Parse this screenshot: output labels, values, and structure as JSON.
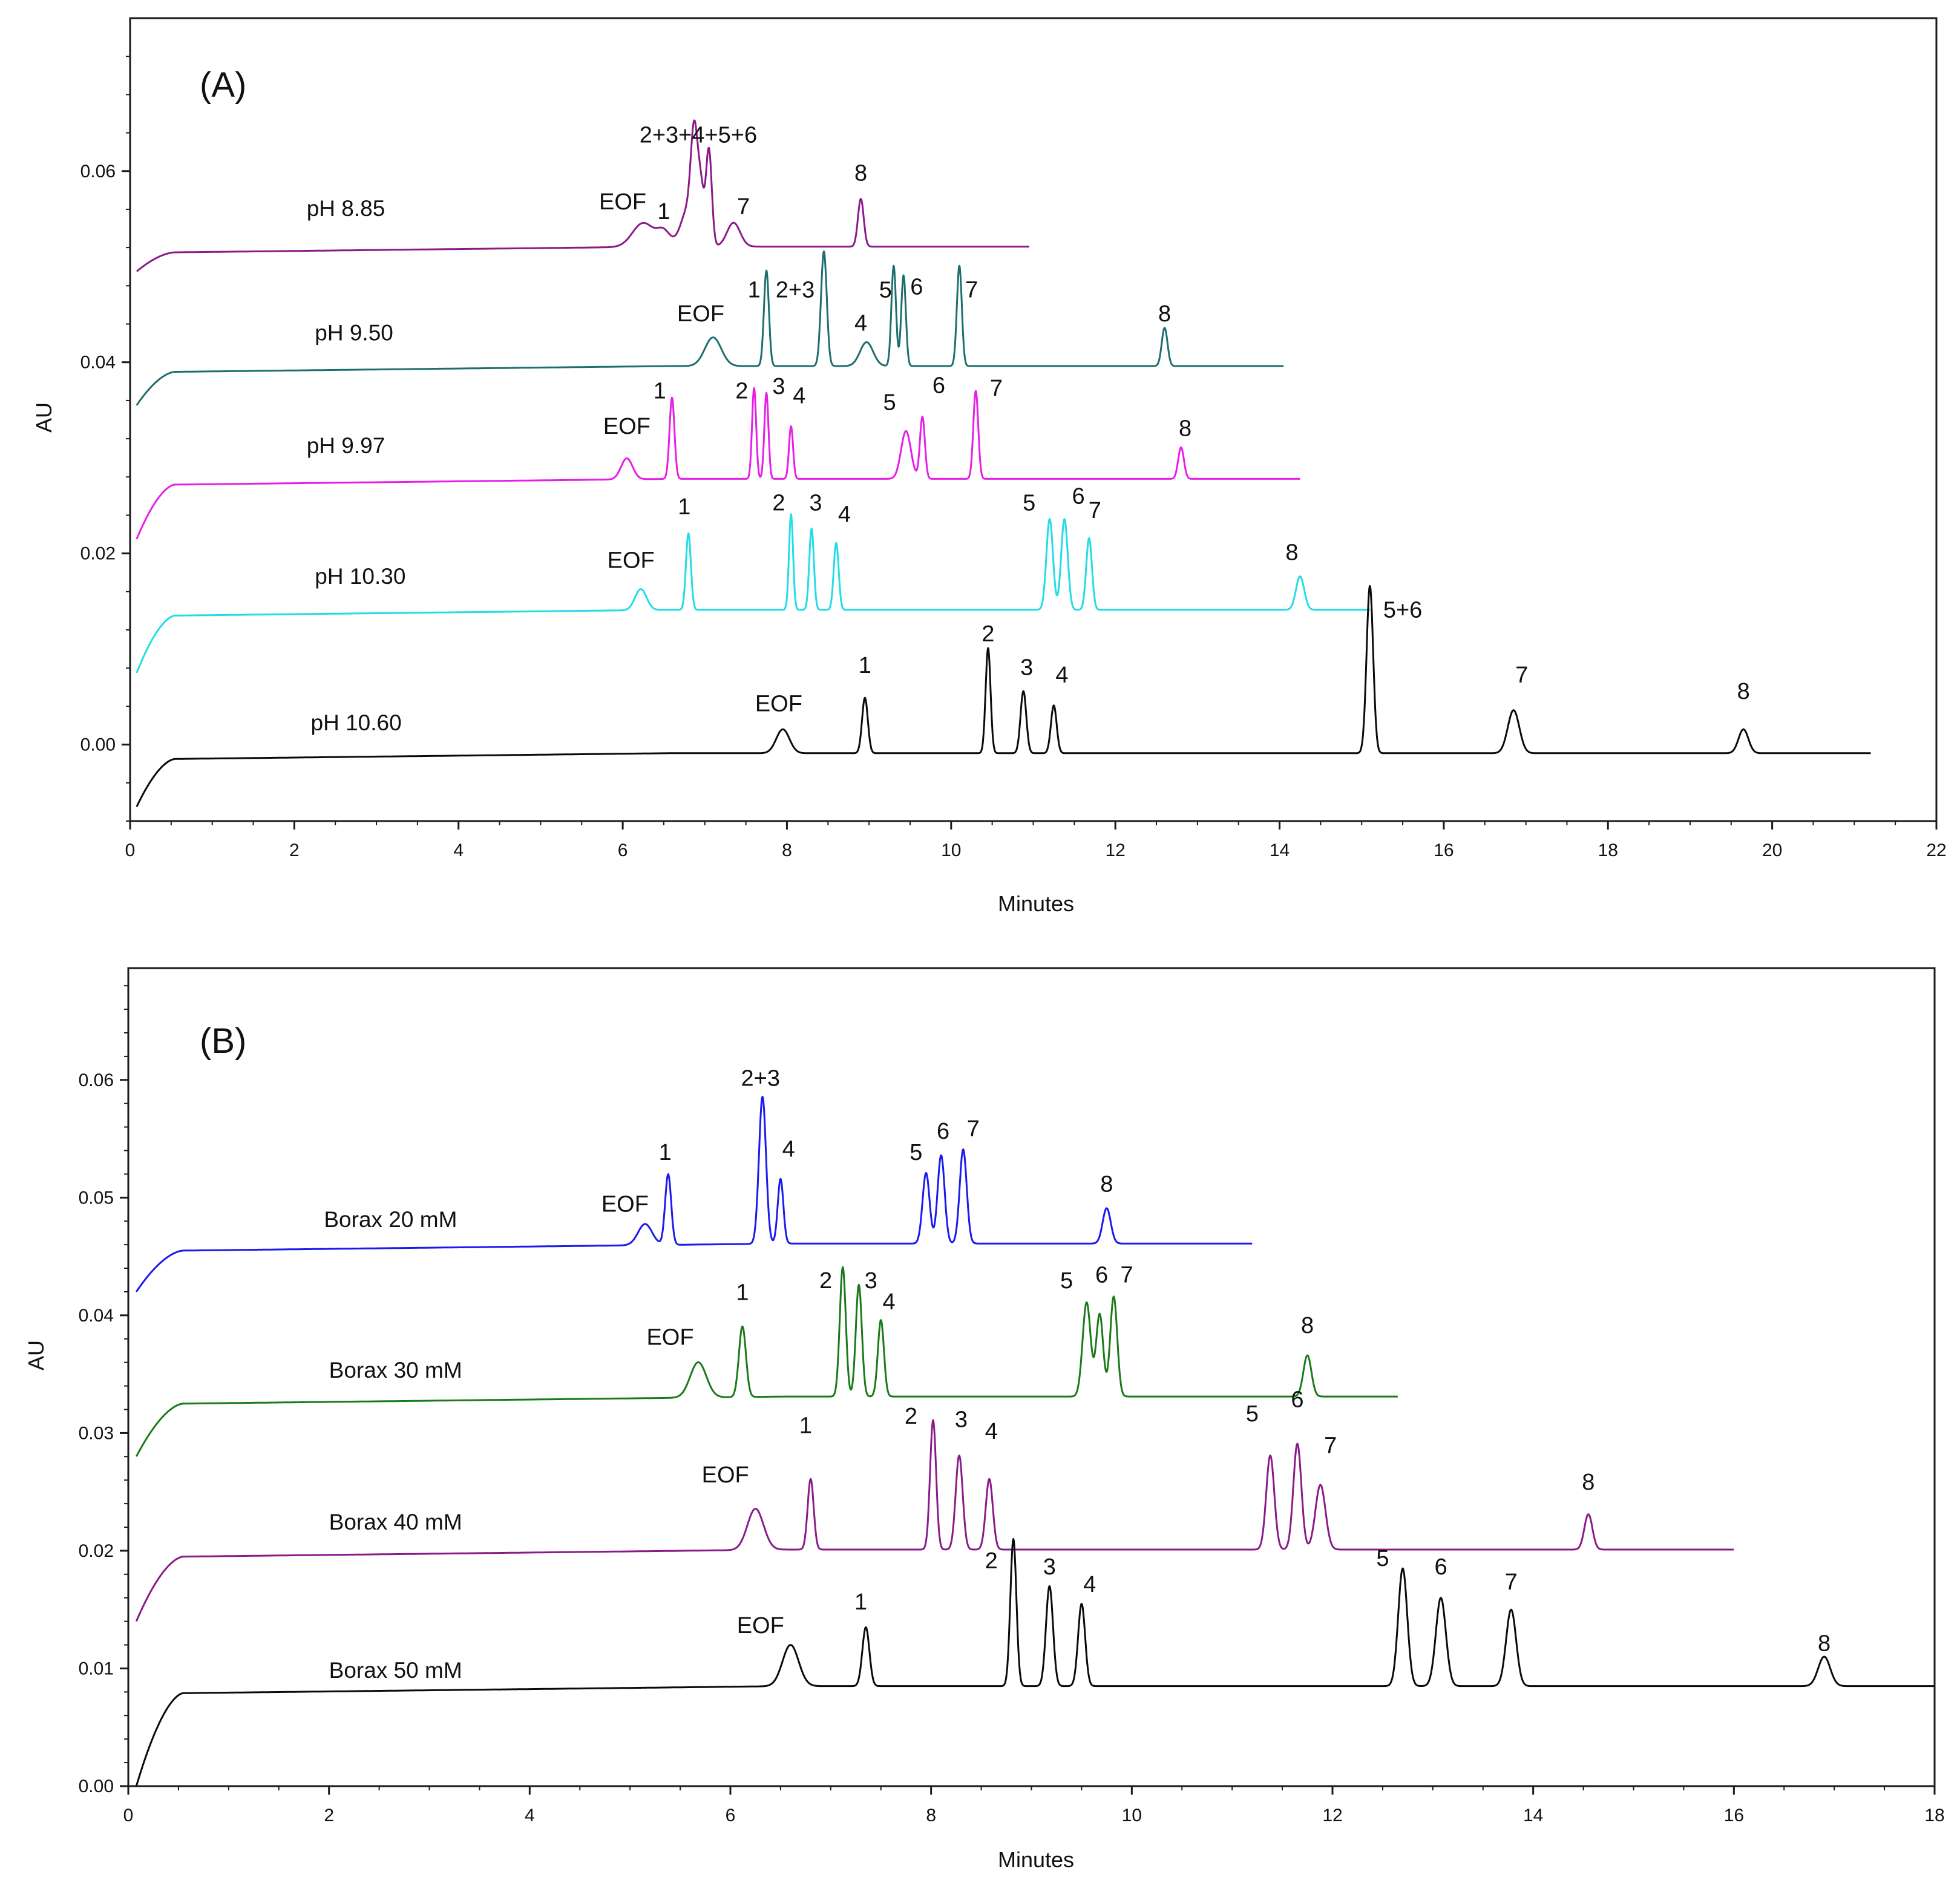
{
  "chart_data": [
    {
      "type": "line",
      "panel": "(A)",
      "xlabel": "Minutes",
      "ylabel": "AU",
      "xlim": [
        0,
        22
      ],
      "ylim": [
        -0.008,
        0.076
      ],
      "xticks": [
        0,
        2,
        4,
        6,
        8,
        10,
        12,
        14,
        16,
        18,
        20,
        22
      ],
      "xtick_labels": [
        "0",
        "2",
        "4",
        "6",
        "8",
        "10",
        "12",
        "14",
        "16",
        "18",
        "20",
        "22"
      ],
      "yticks": [
        0.0,
        0.02,
        0.04,
        0.06
      ],
      "ytick_labels": [
        "0.00",
        "0.02",
        "0.04",
        "0.06"
      ],
      "grid": false,
      "series": [
        {
          "name": "pH 8.85",
          "label": "pH 8.85",
          "color": "#8b1a89",
          "start_y": 0.0495,
          "baseline": 0.0515,
          "end_x": 10.95,
          "label_pos": [
            2.15,
            0.0553
          ],
          "peaks": [
            {
              "t": 6.25,
              "h": 0.0025,
              "w": 0.13,
              "label": "EOF",
              "lx": 6.0,
              "ly": 0.056
            },
            {
              "t": 6.5,
              "h": 0.0015,
              "w": 0.08,
              "label": "1",
              "lx": 6.5,
              "ly": 0.055
            },
            {
              "t": 6.8,
              "h": 0.004,
              "w": 0.09,
              "label": "",
              "lx": 0,
              "ly": 0
            },
            {
              "t": 6.87,
              "h": 0.0095,
              "w": 0.04,
              "label": "",
              "lx": 0,
              "ly": 0
            },
            {
              "t": 6.95,
              "h": 0.0055,
              "w": 0.04,
              "label": "",
              "lx": 0,
              "ly": 0
            },
            {
              "t": 7.05,
              "h": 0.01,
              "w": 0.035,
              "label": "2+3+4+5+6",
              "lx": 6.92,
              "ly": 0.063
            },
            {
              "t": 7.35,
              "h": 0.0025,
              "w": 0.08,
              "label": "7",
              "lx": 7.47,
              "ly": 0.0555
            },
            {
              "t": 8.9,
              "h": 0.005,
              "w": 0.035,
              "label": "8",
              "lx": 8.9,
              "ly": 0.059
            }
          ]
        },
        {
          "name": "pH 9.50",
          "label": "pH 9.50",
          "color": "#1e6e6e",
          "start_y": 0.0355,
          "baseline": 0.039,
          "end_x": 14.05,
          "label_pos": [
            2.25,
            0.0423
          ],
          "peaks": [
            {
              "t": 7.1,
              "h": 0.003,
              "w": 0.1,
              "label": "EOF",
              "lx": 6.95,
              "ly": 0.0443
            },
            {
              "t": 7.75,
              "h": 0.01,
              "w": 0.03,
              "label": "1",
              "lx": 7.6,
              "ly": 0.0468
            },
            {
              "t": 8.45,
              "h": 0.012,
              "w": 0.035,
              "label": "2+3",
              "lx": 8.1,
              "ly": 0.0468
            },
            {
              "t": 8.97,
              "h": 0.0025,
              "w": 0.08,
              "label": "4",
              "lx": 8.9,
              "ly": 0.0433
            },
            {
              "t": 9.3,
              "h": 0.0105,
              "w": 0.028,
              "label": "5",
              "lx": 9.2,
              "ly": 0.0468
            },
            {
              "t": 9.42,
              "h": 0.0095,
              "w": 0.028,
              "label": "6",
              "lx": 9.58,
              "ly": 0.0471
            },
            {
              "t": 10.1,
              "h": 0.0105,
              "w": 0.03,
              "label": "7",
              "lx": 10.25,
              "ly": 0.0468
            },
            {
              "t": 12.6,
              "h": 0.004,
              "w": 0.035,
              "label": "8",
              "lx": 12.6,
              "ly": 0.0443
            }
          ]
        },
        {
          "name": "pH 9.97",
          "label": "pH 9.97",
          "color": "#e81ee8",
          "start_y": 0.0215,
          "baseline": 0.0272,
          "end_x": 14.25,
          "label_pos": [
            2.15,
            0.0305
          ],
          "peaks": [
            {
              "t": 6.05,
              "h": 0.0022,
              "w": 0.07,
              "label": "EOF",
              "lx": 6.05,
              "ly": 0.0325
            },
            {
              "t": 6.6,
              "h": 0.0085,
              "w": 0.03,
              "label": "1",
              "lx": 6.45,
              "ly": 0.0362
            },
            {
              "t": 7.6,
              "h": 0.0095,
              "w": 0.025,
              "label": "2",
              "lx": 7.45,
              "ly": 0.0362
            },
            {
              "t": 7.75,
              "h": 0.009,
              "w": 0.025,
              "label": "3",
              "lx": 7.9,
              "ly": 0.0367
            },
            {
              "t": 8.05,
              "h": 0.0055,
              "w": 0.025,
              "label": "4",
              "lx": 8.15,
              "ly": 0.0357
            },
            {
              "t": 9.45,
              "h": 0.005,
              "w": 0.06,
              "label": "5",
              "lx": 9.25,
              "ly": 0.035
            },
            {
              "t": 9.65,
              "h": 0.0065,
              "w": 0.03,
              "label": "6",
              "lx": 9.85,
              "ly": 0.0368
            },
            {
              "t": 10.3,
              "h": 0.0092,
              "w": 0.03,
              "label": "7",
              "lx": 10.55,
              "ly": 0.0365
            },
            {
              "t": 12.8,
              "h": 0.0033,
              "w": 0.035,
              "label": "8",
              "lx": 12.85,
              "ly": 0.0323
            }
          ]
        },
        {
          "name": "pH 10.30",
          "label": "pH 10.30",
          "color": "#22dde6",
          "start_y": 0.0075,
          "baseline": 0.0135,
          "end_x": 15.1,
          "label_pos": [
            2.25,
            0.0168
          ],
          "peaks": [
            {
              "t": 6.22,
              "h": 0.0022,
              "w": 0.07,
              "label": "EOF",
              "lx": 6.1,
              "ly": 0.0185
            },
            {
              "t": 6.8,
              "h": 0.008,
              "w": 0.03,
              "label": "1",
              "lx": 6.75,
              "ly": 0.0241
            },
            {
              "t": 8.05,
              "h": 0.01,
              "w": 0.025,
              "label": "2",
              "lx": 7.9,
              "ly": 0.0245
            },
            {
              "t": 8.3,
              "h": 0.0085,
              "w": 0.028,
              "label": "3",
              "lx": 8.35,
              "ly": 0.0245
            },
            {
              "t": 8.6,
              "h": 0.007,
              "w": 0.03,
              "label": "4",
              "lx": 8.7,
              "ly": 0.0233
            },
            {
              "t": 11.2,
              "h": 0.0095,
              "w": 0.04,
              "label": "5",
              "lx": 10.95,
              "ly": 0.0245
            },
            {
              "t": 11.38,
              "h": 0.0095,
              "w": 0.04,
              "label": "6",
              "lx": 11.55,
              "ly": 0.0252
            },
            {
              "t": 11.68,
              "h": 0.0075,
              "w": 0.035,
              "label": "7",
              "lx": 11.75,
              "ly": 0.0237
            },
            {
              "t": 14.25,
              "h": 0.0035,
              "w": 0.05,
              "label": "8",
              "lx": 14.15,
              "ly": 0.0193
            }
          ]
        },
        {
          "name": "pH 10.60",
          "label": "pH 10.60",
          "color": "#0a0a0a",
          "start_y": -0.0065,
          "baseline": -0.0015,
          "end_x": 21.2,
          "label_pos": [
            2.2,
            0.0015
          ],
          "peaks": [
            {
              "t": 7.95,
              "h": 0.0025,
              "w": 0.08,
              "label": "EOF",
              "lx": 7.9,
              "ly": 0.0035
            },
            {
              "t": 8.95,
              "h": 0.0058,
              "w": 0.035,
              "label": "1",
              "lx": 8.95,
              "ly": 0.0075
            },
            {
              "t": 10.45,
              "h": 0.011,
              "w": 0.03,
              "label": "2",
              "lx": 10.45,
              "ly": 0.0108
            },
            {
              "t": 10.88,
              "h": 0.0065,
              "w": 0.035,
              "label": "3",
              "lx": 10.92,
              "ly": 0.0073
            },
            {
              "t": 11.25,
              "h": 0.005,
              "w": 0.035,
              "label": "4",
              "lx": 11.35,
              "ly": 0.0065
            },
            {
              "t": 15.1,
              "h": 0.0175,
              "w": 0.04,
              "label": "5+6",
              "lx": 15.5,
              "ly": 0.0133
            },
            {
              "t": 16.85,
              "h": 0.0045,
              "w": 0.07,
              "label": "7",
              "lx": 16.95,
              "ly": 0.0065
            },
            {
              "t": 19.65,
              "h": 0.0025,
              "w": 0.06,
              "label": "8",
              "lx": 19.65,
              "ly": 0.0048
            }
          ]
        }
      ]
    },
    {
      "type": "line",
      "panel": "(B)",
      "xlabel": "Minutes",
      "ylabel": "AU",
      "xlim": [
        0,
        18
      ],
      "ylim": [
        0.0,
        0.0695
      ],
      "xticks": [
        0,
        2,
        4,
        6,
        8,
        10,
        12,
        14,
        16,
        18
      ],
      "xtick_labels": [
        "0",
        "2",
        "4",
        "6",
        "8",
        "10",
        "12",
        "14",
        "16",
        "18"
      ],
      "yticks": [
        0.0,
        0.01,
        0.02,
        0.03,
        0.04,
        0.05,
        0.06
      ],
      "ytick_labels": [
        "0.00",
        "0.01",
        "0.02",
        "0.03",
        "0.04",
        "0.05",
        "0.06"
      ],
      "grid": false,
      "series": [
        {
          "name": "Borax 20 mM",
          "label": "Borax 20 mM",
          "color": "#1a1aee",
          "start_y": 0.042,
          "baseline": 0.0455,
          "end_x": 11.2,
          "label_pos": [
            1.95,
            0.0475
          ],
          "peaks": [
            {
              "t": 5.15,
              "h": 0.0018,
              "w": 0.07,
              "label": "EOF",
              "lx": 4.95,
              "ly": 0.0488
            },
            {
              "t": 5.38,
              "h": 0.006,
              "w": 0.03,
              "label": "1",
              "lx": 5.35,
              "ly": 0.0532
            },
            {
              "t": 6.32,
              "h": 0.0125,
              "w": 0.035,
              "label": "2+3",
              "lx": 6.3,
              "ly": 0.0595
            },
            {
              "t": 6.5,
              "h": 0.0055,
              "w": 0.028,
              "label": "4",
              "lx": 6.58,
              "ly": 0.0535
            },
            {
              "t": 7.95,
              "h": 0.006,
              "w": 0.035,
              "label": "5",
              "lx": 7.85,
              "ly": 0.0532
            },
            {
              "t": 8.1,
              "h": 0.0075,
              "w": 0.035,
              "label": "6",
              "lx": 8.12,
              "ly": 0.055
            },
            {
              "t": 8.32,
              "h": 0.008,
              "w": 0.035,
              "label": "7",
              "lx": 8.42,
              "ly": 0.0552
            },
            {
              "t": 9.75,
              "h": 0.003,
              "w": 0.04,
              "label": "8",
              "lx": 9.75,
              "ly": 0.0505
            }
          ]
        },
        {
          "name": "Borax 30 mM",
          "label": "Borax 30 mM",
          "color": "#1a7a1a",
          "start_y": 0.028,
          "baseline": 0.0325,
          "end_x": 12.65,
          "label_pos": [
            2.0,
            0.0347
          ],
          "peaks": [
            {
              "t": 5.68,
              "h": 0.003,
              "w": 0.08,
              "label": "EOF",
              "lx": 5.4,
              "ly": 0.0375
            },
            {
              "t": 6.12,
              "h": 0.006,
              "w": 0.035,
              "label": "1",
              "lx": 6.12,
              "ly": 0.0413
            },
            {
              "t": 7.12,
              "h": 0.011,
              "w": 0.03,
              "label": "2",
              "lx": 6.95,
              "ly": 0.0423
            },
            {
              "t": 7.28,
              "h": 0.0095,
              "w": 0.03,
              "label": "3",
              "lx": 7.4,
              "ly": 0.0423
            },
            {
              "t": 7.5,
              "h": 0.0065,
              "w": 0.03,
              "label": "4",
              "lx": 7.58,
              "ly": 0.0405
            },
            {
              "t": 9.55,
              "h": 0.008,
              "w": 0.04,
              "label": "5",
              "lx": 9.35,
              "ly": 0.0423
            },
            {
              "t": 9.68,
              "h": 0.007,
              "w": 0.035,
              "label": "6",
              "lx": 9.7,
              "ly": 0.0428
            },
            {
              "t": 9.82,
              "h": 0.0085,
              "w": 0.035,
              "label": "7",
              "lx": 9.95,
              "ly": 0.0428
            },
            {
              "t": 11.75,
              "h": 0.0035,
              "w": 0.04,
              "label": "8",
              "lx": 11.75,
              "ly": 0.0385
            }
          ]
        },
        {
          "name": "Borax 40 mM",
          "label": "Borax 40 mM",
          "color": "#8b1a89",
          "start_y": 0.014,
          "baseline": 0.0195,
          "end_x": 16.0,
          "label_pos": [
            2.0,
            0.0218
          ],
          "peaks": [
            {
              "t": 6.25,
              "h": 0.0035,
              "w": 0.08,
              "label": "EOF",
              "lx": 5.95,
              "ly": 0.0258
            },
            {
              "t": 6.8,
              "h": 0.006,
              "w": 0.03,
              "label": "1",
              "lx": 6.75,
              "ly": 0.03
            },
            {
              "t": 8.02,
              "h": 0.011,
              "w": 0.03,
              "label": "2",
              "lx": 7.8,
              "ly": 0.0308
            },
            {
              "t": 8.28,
              "h": 0.008,
              "w": 0.035,
              "label": "3",
              "lx": 8.3,
              "ly": 0.0305
            },
            {
              "t": 8.58,
              "h": 0.006,
              "w": 0.035,
              "label": "4",
              "lx": 8.6,
              "ly": 0.0295
            },
            {
              "t": 11.38,
              "h": 0.008,
              "w": 0.04,
              "label": "5",
              "lx": 11.2,
              "ly": 0.031
            },
            {
              "t": 11.65,
              "h": 0.009,
              "w": 0.04,
              "label": "6",
              "lx": 11.65,
              "ly": 0.0322
            },
            {
              "t": 11.88,
              "h": 0.0055,
              "w": 0.05,
              "label": "7",
              "lx": 11.98,
              "ly": 0.0283
            },
            {
              "t": 14.55,
              "h": 0.003,
              "w": 0.04,
              "label": "8",
              "lx": 14.55,
              "ly": 0.0252
            }
          ]
        },
        {
          "name": "Borax 50 mM",
          "label": "Borax 50 mM",
          "color": "#0a0a0a",
          "start_y": 0.0,
          "baseline": 0.0079,
          "end_x": 18.0,
          "label_pos": [
            2.0,
            0.0092
          ],
          "peaks": [
            {
              "t": 6.6,
              "h": 0.0035,
              "w": 0.08,
              "label": "EOF",
              "lx": 6.3,
              "ly": 0.013
            },
            {
              "t": 7.35,
              "h": 0.005,
              "w": 0.035,
              "label": "1",
              "lx": 7.3,
              "ly": 0.015
            },
            {
              "t": 8.82,
              "h": 0.0125,
              "w": 0.03,
              "label": "2",
              "lx": 8.6,
              "ly": 0.0185
            },
            {
              "t": 9.18,
              "h": 0.0085,
              "w": 0.035,
              "label": "3",
              "lx": 9.18,
              "ly": 0.018
            },
            {
              "t": 9.5,
              "h": 0.007,
              "w": 0.035,
              "label": "4",
              "lx": 9.58,
              "ly": 0.0165
            },
            {
              "t": 12.7,
              "h": 0.01,
              "w": 0.045,
              "label": "5",
              "lx": 12.5,
              "ly": 0.0187
            },
            {
              "t": 13.08,
              "h": 0.0075,
              "w": 0.05,
              "label": "6",
              "lx": 13.08,
              "ly": 0.018
            },
            {
              "t": 13.78,
              "h": 0.0065,
              "w": 0.05,
              "label": "7",
              "lx": 13.78,
              "ly": 0.0167
            },
            {
              "t": 16.9,
              "h": 0.0025,
              "w": 0.06,
              "label": "8",
              "lx": 16.9,
              "ly": 0.0115
            }
          ]
        }
      ]
    }
  ]
}
